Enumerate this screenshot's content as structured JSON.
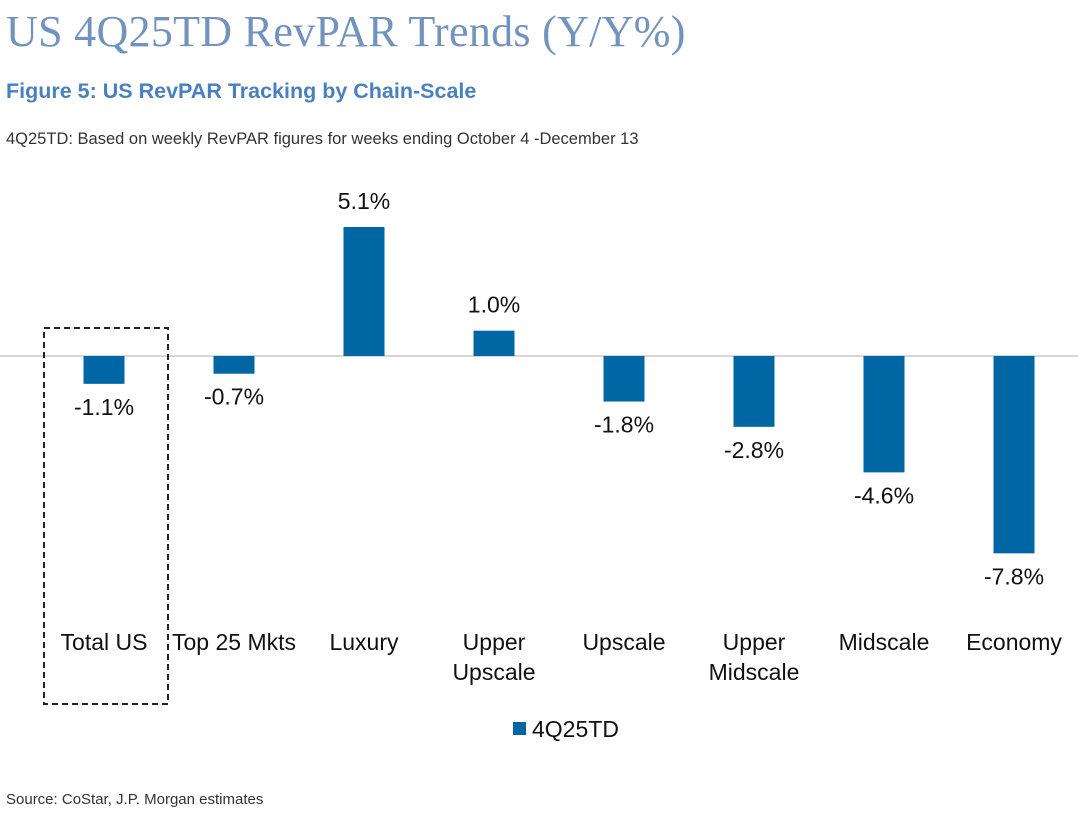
{
  "page": {
    "title": "US 4Q25TD RevPAR Trends (Y/Y%)",
    "figure_title": "Figure 5: US RevPAR Tracking by Chain-Scale",
    "subtitle": "4Q25TD: Based on weekly RevPAR figures for weeks ending October 4 -December 13",
    "source": "Source: CoStar, J.P. Morgan estimates"
  },
  "colors": {
    "title": "#7193BE",
    "figure_title": "#4A80BF",
    "bar": "#0066A4",
    "zero_line": "#D6D6D6",
    "highlight_border": "#222222"
  },
  "chart_data": {
    "type": "bar",
    "categories": [
      "Total US",
      "Top 25 Mkts",
      "Luxury",
      "Upper Upscale",
      "Upscale",
      "Upper Midscale",
      "Midscale",
      "Economy"
    ],
    "category_lines": [
      [
        "Total US"
      ],
      [
        "Top 25 Mkts"
      ],
      [
        "Luxury"
      ],
      [
        "Upper",
        "Upscale"
      ],
      [
        "Upscale"
      ],
      [
        "Upper",
        "Midscale"
      ],
      [
        "Midscale"
      ],
      [
        "Economy"
      ]
    ],
    "series": [
      {
        "name": "4Q25TD",
        "values": [
          -1.1,
          -0.7,
          5.1,
          1.0,
          -1.8,
          -2.8,
          -4.6,
          -7.8
        ]
      }
    ],
    "data_labels": [
      "-1.1%",
      "-0.7%",
      "5.1%",
      "1.0%",
      "-1.8%",
      "-2.8%",
      "-4.6%",
      "-7.8%"
    ],
    "highlighted_category": "Total US",
    "legend": {
      "position": "bottom",
      "entries": [
        "4Q25TD"
      ]
    },
    "ylim": [
      -7.8,
      5.1
    ],
    "xlabel": "",
    "ylabel": "",
    "grid": false
  }
}
